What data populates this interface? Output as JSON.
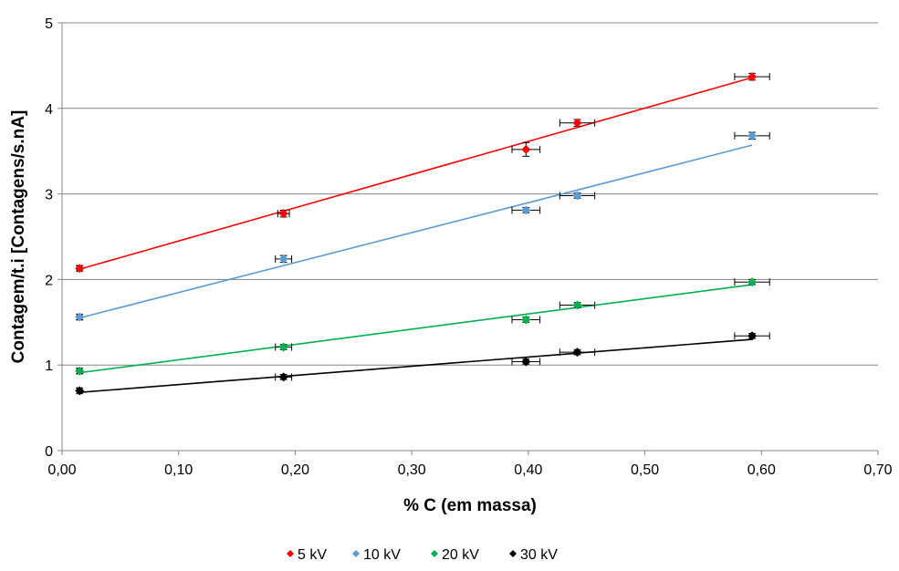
{
  "chart_data": {
    "type": "scatter",
    "title": "",
    "xlabel": "% C (em massa)",
    "ylabel": "Contagem/t.i [Contagens/s.nA]",
    "xlim": [
      0,
      0.7
    ],
    "ylim": [
      0,
      5
    ],
    "x_ticks": [
      "0,00",
      "0,10",
      "0,20",
      "0,30",
      "0,40",
      "0,50",
      "0,60",
      "0,70"
    ],
    "y_ticks": [
      "0",
      "1",
      "2",
      "3",
      "4",
      "5"
    ],
    "grid": "horizontal",
    "legend_position": "bottom",
    "series": [
      {
        "name": "5 kV",
        "color": "#ff0000",
        "x": [
          0.015,
          0.19,
          0.398,
          0.442,
          0.592
        ],
        "y": [
          2.13,
          2.77,
          3.52,
          3.83,
          4.37
        ],
        "x_err": [
          0.002,
          0.005,
          0.012,
          0.015,
          0.015
        ],
        "y_err": [
          0.03,
          0.04,
          0.08,
          0.04,
          0.04
        ],
        "trend": [
          [
            0.015,
            2.12
          ],
          [
            0.592,
            4.36
          ]
        ]
      },
      {
        "name": "10 kV",
        "color": "#5b9bd5",
        "x": [
          0.015,
          0.19,
          0.398,
          0.442,
          0.592
        ],
        "y": [
          1.56,
          2.24,
          2.81,
          2.98,
          3.68
        ],
        "x_err": [
          0.002,
          0.007,
          0.012,
          0.015,
          0.015
        ],
        "y_err": [
          0.03,
          0.04,
          0.03,
          0.03,
          0.04
        ],
        "trend": [
          [
            0.015,
            1.55
          ],
          [
            0.592,
            3.57
          ]
        ]
      },
      {
        "name": "20 kV",
        "color": "#00b050",
        "x": [
          0.015,
          0.19,
          0.398,
          0.442,
          0.592
        ],
        "y": [
          0.93,
          1.21,
          1.53,
          1.7,
          1.97
        ],
        "x_err": [
          0.002,
          0.007,
          0.012,
          0.015,
          0.015
        ],
        "y_err": [
          0.03,
          0.03,
          0.03,
          0.03,
          0.03
        ],
        "trend": [
          [
            0.015,
            0.91
          ],
          [
            0.592,
            1.94
          ]
        ]
      },
      {
        "name": "30 kV",
        "color": "#000000",
        "x": [
          0.015,
          0.19,
          0.398,
          0.442,
          0.592
        ],
        "y": [
          0.7,
          0.86,
          1.04,
          1.15,
          1.34
        ],
        "x_err": [
          0.002,
          0.007,
          0.012,
          0.015,
          0.015
        ],
        "y_err": [
          0.03,
          0.03,
          0.03,
          0.03,
          0.03
        ],
        "trend": [
          [
            0.015,
            0.68
          ],
          [
            0.592,
            1.3
          ]
        ]
      }
    ]
  }
}
